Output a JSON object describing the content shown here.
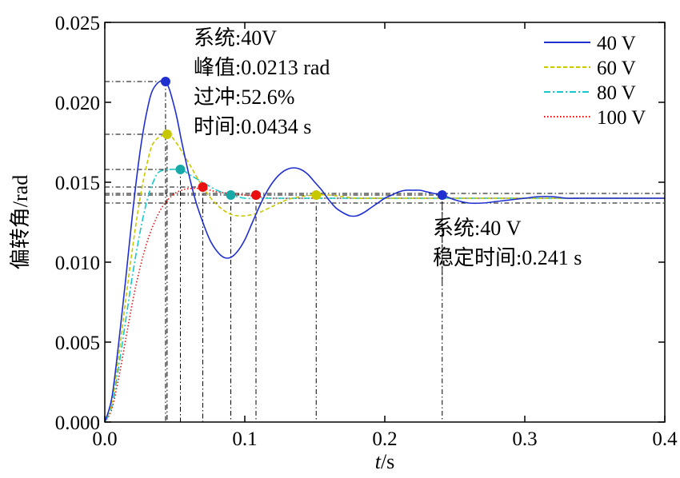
{
  "chart_data": {
    "type": "line",
    "xlabel_italic": "t",
    "xlabel_unit": "/s",
    "ylabel": "偏转角/rad",
    "xlim": [
      0,
      0.4
    ],
    "ylim": [
      0,
      0.025
    ],
    "xticks": [
      "0.0",
      "0.1",
      "0.2",
      "0.3",
      "0.4"
    ],
    "xtick_values": [
      0,
      0.1,
      0.2,
      0.3,
      0.4
    ],
    "yticks": [
      "0.000",
      "0.005",
      "0.010",
      "0.015",
      "0.020",
      "0.025"
    ],
    "ytick_values": [
      0,
      0.005,
      0.01,
      0.015,
      0.02,
      0.025
    ],
    "legend_position": "top-right",
    "series": [
      {
        "name": "40 V",
        "color": "#1f2fd0",
        "style": "solid",
        "points": [
          [
            0,
            0
          ],
          [
            0.005,
            0.0015
          ],
          [
            0.01,
            0.005
          ],
          [
            0.015,
            0.009
          ],
          [
            0.02,
            0.0132
          ],
          [
            0.025,
            0.0168
          ],
          [
            0.03,
            0.0194
          ],
          [
            0.035,
            0.0209
          ],
          [
            0.0434,
            0.0213
          ],
          [
            0.05,
            0.0196
          ],
          [
            0.055,
            0.0175
          ],
          [
            0.06,
            0.0155
          ],
          [
            0.065,
            0.0138
          ],
          [
            0.07,
            0.0125
          ],
          [
            0.075,
            0.0114
          ],
          [
            0.08,
            0.0107
          ],
          [
            0.085,
            0.0103
          ],
          [
            0.09,
            0.0103
          ],
          [
            0.095,
            0.0107
          ],
          [
            0.1,
            0.0114
          ],
          [
            0.105,
            0.0124
          ],
          [
            0.11,
            0.0134
          ],
          [
            0.115,
            0.0143
          ],
          [
            0.12,
            0.015
          ],
          [
            0.125,
            0.0155
          ],
          [
            0.13,
            0.0158
          ],
          [
            0.135,
            0.0159
          ],
          [
            0.14,
            0.0158
          ],
          [
            0.145,
            0.0155
          ],
          [
            0.15,
            0.015
          ],
          [
            0.155,
            0.0145
          ],
          [
            0.16,
            0.0139
          ],
          [
            0.165,
            0.0134
          ],
          [
            0.17,
            0.0131
          ],
          [
            0.175,
            0.0129
          ],
          [
            0.18,
            0.0129
          ],
          [
            0.185,
            0.0131
          ],
          [
            0.19,
            0.0134
          ],
          [
            0.195,
            0.0137
          ],
          [
            0.2,
            0.014
          ],
          [
            0.205,
            0.0142
          ],
          [
            0.21,
            0.0144
          ],
          [
            0.215,
            0.0145
          ],
          [
            0.22,
            0.0145
          ],
          [
            0.225,
            0.0145
          ],
          [
            0.23,
            0.0144
          ],
          [
            0.235,
            0.0143
          ],
          [
            0.241,
            0.0142
          ],
          [
            0.25,
            0.0139
          ],
          [
            0.26,
            0.0137
          ],
          [
            0.27,
            0.0137
          ],
          [
            0.28,
            0.0138
          ],
          [
            0.29,
            0.0139
          ],
          [
            0.3,
            0.014
          ],
          [
            0.31,
            0.0141
          ],
          [
            0.32,
            0.0141
          ],
          [
            0.33,
            0.014
          ],
          [
            0.34,
            0.014
          ],
          [
            0.36,
            0.014
          ],
          [
            0.38,
            0.014
          ],
          [
            0.4,
            0.014
          ]
        ]
      },
      {
        "name": "60 V",
        "color": "#c8c800",
        "style": "dashed",
        "points": [
          [
            0,
            0
          ],
          [
            0.005,
            0.0012
          ],
          [
            0.01,
            0.0042
          ],
          [
            0.015,
            0.0077
          ],
          [
            0.02,
            0.011
          ],
          [
            0.025,
            0.0139
          ],
          [
            0.03,
            0.0161
          ],
          [
            0.035,
            0.0175
          ],
          [
            0.0445,
            0.018
          ],
          [
            0.05,
            0.0176
          ],
          [
            0.06,
            0.0162
          ],
          [
            0.07,
            0.0147
          ],
          [
            0.08,
            0.0136
          ],
          [
            0.09,
            0.013
          ],
          [
            0.1,
            0.0129
          ],
          [
            0.11,
            0.0131
          ],
          [
            0.12,
            0.0135
          ],
          [
            0.13,
            0.0139
          ],
          [
            0.14,
            0.0141
          ],
          [
            0.15,
            0.0142
          ],
          [
            0.16,
            0.0142
          ],
          [
            0.17,
            0.0141
          ],
          [
            0.18,
            0.014
          ],
          [
            0.2,
            0.014
          ],
          [
            0.25,
            0.014
          ],
          [
            0.3,
            0.014
          ],
          [
            0.35,
            0.014
          ],
          [
            0.4,
            0.014
          ]
        ]
      },
      {
        "name": "80 V",
        "color": "#18c8c8",
        "style": "dashdot",
        "points": [
          [
            0,
            0
          ],
          [
            0.005,
            0.001
          ],
          [
            0.01,
            0.0035
          ],
          [
            0.015,
            0.0064
          ],
          [
            0.02,
            0.0093
          ],
          [
            0.025,
            0.0118
          ],
          [
            0.03,
            0.0138
          ],
          [
            0.035,
            0.0151
          ],
          [
            0.04,
            0.0157
          ],
          [
            0.054,
            0.0158
          ],
          [
            0.06,
            0.0155
          ],
          [
            0.07,
            0.015
          ],
          [
            0.08,
            0.0145
          ],
          [
            0.09,
            0.0142
          ],
          [
            0.1,
            0.014
          ],
          [
            0.11,
            0.014
          ],
          [
            0.12,
            0.014
          ],
          [
            0.13,
            0.014
          ],
          [
            0.15,
            0.014
          ],
          [
            0.2,
            0.014
          ],
          [
            0.3,
            0.014
          ],
          [
            0.4,
            0.014
          ]
        ]
      },
      {
        "name": "100 V",
        "color": "#e81010",
        "style": "dotted",
        "points": [
          [
            0,
            0
          ],
          [
            0.005,
            0.0008
          ],
          [
            0.01,
            0.0028
          ],
          [
            0.015,
            0.0052
          ],
          [
            0.02,
            0.0076
          ],
          [
            0.025,
            0.0096
          ],
          [
            0.03,
            0.0112
          ],
          [
            0.035,
            0.0124
          ],
          [
            0.04,
            0.0133
          ],
          [
            0.045,
            0.0139
          ],
          [
            0.05,
            0.0143
          ],
          [
            0.055,
            0.0145
          ],
          [
            0.06,
            0.0146
          ],
          [
            0.07,
            0.0146
          ],
          [
            0.08,
            0.0144
          ],
          [
            0.09,
            0.0143
          ],
          [
            0.1,
            0.0142
          ],
          [
            0.11,
            0.0141
          ],
          [
            0.12,
            0.014
          ],
          [
            0.15,
            0.014
          ],
          [
            0.2,
            0.014
          ],
          [
            0.3,
            0.014
          ],
          [
            0.4,
            0.014
          ]
        ]
      }
    ],
    "markers": [
      {
        "series": "40 V",
        "x": 0.0434,
        "y": 0.0213,
        "color": "#1f2fd0"
      },
      {
        "series": "60 V",
        "x": 0.0445,
        "y": 0.018,
        "color": "#c8c800"
      },
      {
        "series": "80 V",
        "x": 0.054,
        "y": 0.0158,
        "color": "#18a8a8"
      },
      {
        "series": "100 V",
        "x": 0.07,
        "y": 0.0147,
        "color": "#e81010"
      },
      {
        "series": "80 V",
        "x": 0.09,
        "y": 0.0142,
        "color": "#18a8a8"
      },
      {
        "series": "100 V",
        "x": 0.108,
        "y": 0.0142,
        "color": "#e81010"
      },
      {
        "series": "60 V",
        "x": 0.151,
        "y": 0.0142,
        "color": "#c8c800"
      },
      {
        "series": "40 V",
        "x": 0.241,
        "y": 0.0142,
        "color": "#1f2fd0"
      }
    ],
    "annotation_peak": {
      "lines": [
        "系统:40V",
        "峰值:0.0213 rad",
        "过冲:52.6%",
        "时间:0.0434 s"
      ]
    },
    "annotation_settling": {
      "lines": [
        "系统:40 V",
        "稳定时间:0.241 s"
      ]
    },
    "band_levels": [
      0.0143,
      0.0137
    ]
  }
}
